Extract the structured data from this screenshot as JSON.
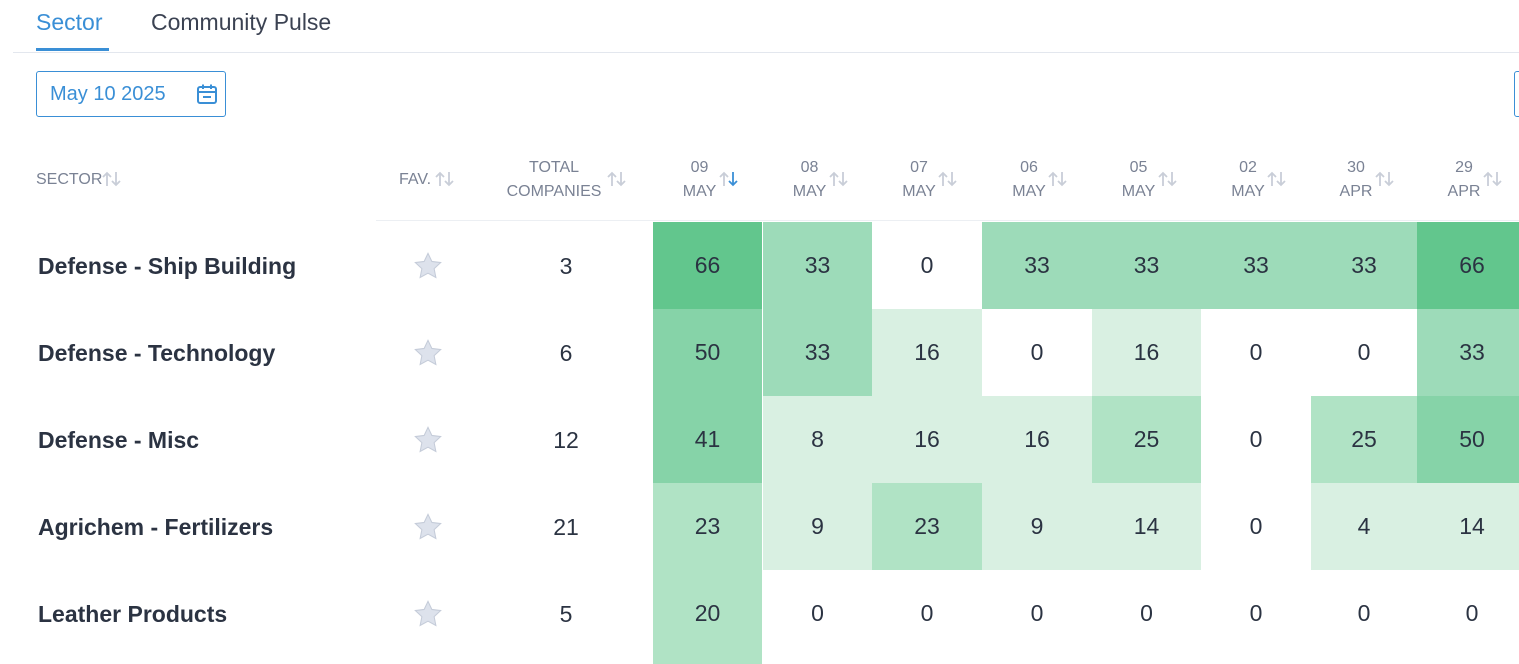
{
  "tabs": [
    {
      "label": "Sector",
      "active": true
    },
    {
      "label": "Community Pulse",
      "active": false
    }
  ],
  "date_picker": {
    "value": "May 10 2025",
    "icon": "calendar-icon"
  },
  "table": {
    "headers": {
      "sector": "SECTOR",
      "fav": "FAV.",
      "total_line1": "TOTAL",
      "total_line2": "COMPANIES"
    },
    "date_columns": [
      {
        "day": "09",
        "month": "MAY",
        "sorted": true
      },
      {
        "day": "08",
        "month": "MAY",
        "sorted": false
      },
      {
        "day": "07",
        "month": "MAY",
        "sorted": false
      },
      {
        "day": "06",
        "month": "MAY",
        "sorted": false
      },
      {
        "day": "05",
        "month": "MAY",
        "sorted": false
      },
      {
        "day": "02",
        "month": "MAY",
        "sorted": false
      },
      {
        "day": "30",
        "month": "APR",
        "sorted": false
      },
      {
        "day": "29",
        "month": "APR",
        "sorted": false
      }
    ],
    "rows": [
      {
        "sector": "Defense - Ship Building",
        "total": "3",
        "values": [
          "66",
          "33",
          "0",
          "33",
          "33",
          "33",
          "33",
          "66"
        ]
      },
      {
        "sector": "Defense - Technology",
        "total": "6",
        "values": [
          "50",
          "33",
          "16",
          "0",
          "16",
          "0",
          "0",
          "33"
        ]
      },
      {
        "sector": "Defense - Misc",
        "total": "12",
        "values": [
          "41",
          "8",
          "16",
          "16",
          "25",
          "0",
          "25",
          "50"
        ]
      },
      {
        "sector": "Agrichem - Fertilizers",
        "total": "21",
        "values": [
          "23",
          "9",
          "23",
          "9",
          "14",
          "0",
          "4",
          "14"
        ]
      },
      {
        "sector": "Leather Products",
        "total": "5",
        "values": [
          "20",
          "0",
          "0",
          "0",
          "0",
          "0",
          "0",
          "0"
        ]
      }
    ]
  },
  "colors": {
    "accent": "#3a8fd6",
    "heat_levels": [
      "#ffffff",
      "#d9f0e2",
      "#b0e3c5",
      "#9ddbb9",
      "#86d3a8",
      "#62c68d"
    ]
  }
}
